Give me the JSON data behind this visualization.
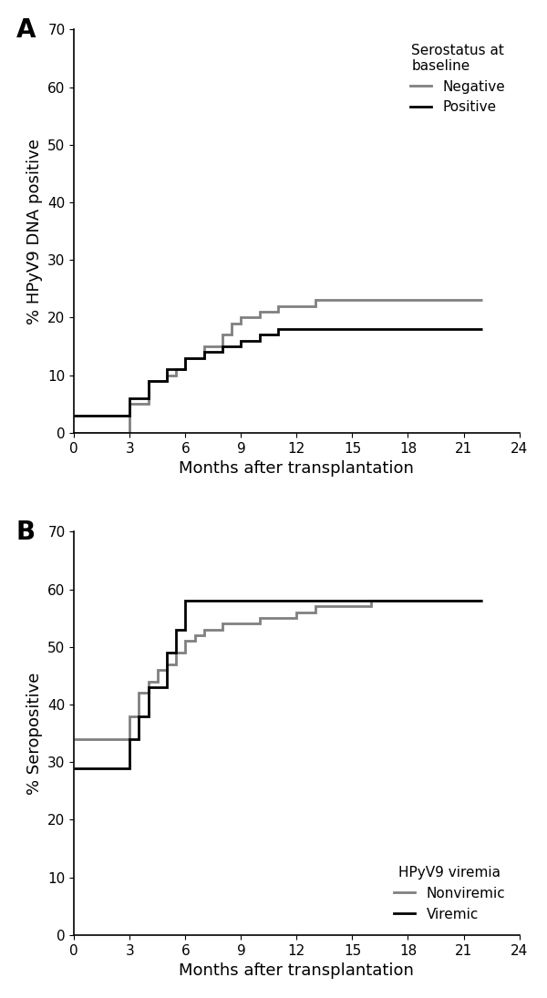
{
  "panel_A": {
    "title_label": "A",
    "ylabel": "% HPyV9 DNA positive",
    "xlabel": "Months after transplantation",
    "xlim": [
      0,
      24
    ],
    "ylim": [
      0,
      70
    ],
    "yticks": [
      0,
      10,
      20,
      30,
      40,
      50,
      60,
      70
    ],
    "xticks": [
      0,
      3,
      6,
      9,
      12,
      15,
      18,
      21,
      24
    ],
    "legend_title": "Serostatus at\nbaseline",
    "legend_labels": [
      "Negative",
      "Positive"
    ],
    "legend_pos": "upper right",
    "gray_steps": [
      [
        0,
        0
      ],
      [
        3,
        0
      ],
      [
        3,
        5
      ],
      [
        4,
        5
      ],
      [
        4,
        9
      ],
      [
        5,
        9
      ],
      [
        5,
        10
      ],
      [
        5.5,
        10
      ],
      [
        5.5,
        11
      ],
      [
        6,
        11
      ],
      [
        6,
        13
      ],
      [
        7,
        13
      ],
      [
        7,
        15
      ],
      [
        8,
        15
      ],
      [
        8,
        17
      ],
      [
        8.5,
        17
      ],
      [
        8.5,
        19
      ],
      [
        9,
        19
      ],
      [
        9,
        20
      ],
      [
        10,
        20
      ],
      [
        10,
        21
      ],
      [
        11,
        21
      ],
      [
        11,
        22
      ],
      [
        13,
        22
      ],
      [
        13,
        23
      ],
      [
        22,
        23
      ]
    ],
    "black_steps": [
      [
        0,
        3
      ],
      [
        3,
        3
      ],
      [
        3,
        6
      ],
      [
        4,
        6
      ],
      [
        4,
        9
      ],
      [
        5,
        9
      ],
      [
        5,
        11
      ],
      [
        6,
        11
      ],
      [
        6,
        13
      ],
      [
        7,
        13
      ],
      [
        7,
        14
      ],
      [
        8,
        14
      ],
      [
        8,
        15
      ],
      [
        9,
        15
      ],
      [
        9,
        16
      ],
      [
        10,
        16
      ],
      [
        10,
        17
      ],
      [
        11,
        17
      ],
      [
        11,
        18
      ],
      [
        17,
        18
      ],
      [
        17,
        18
      ],
      [
        22,
        18
      ]
    ]
  },
  "panel_B": {
    "title_label": "B",
    "ylabel": "% Seropositive",
    "xlabel": "Months after transplantation",
    "xlim": [
      0,
      24
    ],
    "ylim": [
      0,
      70
    ],
    "yticks": [
      0,
      10,
      20,
      30,
      40,
      50,
      60,
      70
    ],
    "xticks": [
      0,
      3,
      6,
      9,
      12,
      15,
      18,
      21,
      24
    ],
    "legend_title": "HPyV9 viremia",
    "legend_labels": [
      "Nonviremic",
      "Viremic"
    ],
    "legend_pos": "lower right",
    "gray_steps": [
      [
        0,
        34
      ],
      [
        3,
        34
      ],
      [
        3,
        38
      ],
      [
        3.5,
        38
      ],
      [
        3.5,
        42
      ],
      [
        4,
        42
      ],
      [
        4,
        44
      ],
      [
        4.5,
        44
      ],
      [
        4.5,
        46
      ],
      [
        5,
        46
      ],
      [
        5,
        47
      ],
      [
        5.5,
        47
      ],
      [
        5.5,
        49
      ],
      [
        6,
        49
      ],
      [
        6,
        51
      ],
      [
        6.5,
        51
      ],
      [
        6.5,
        52
      ],
      [
        7,
        52
      ],
      [
        7,
        53
      ],
      [
        8,
        53
      ],
      [
        8,
        54
      ],
      [
        9,
        54
      ],
      [
        9,
        54
      ],
      [
        10,
        54
      ],
      [
        10,
        55
      ],
      [
        11,
        55
      ],
      [
        11,
        55
      ],
      [
        12,
        55
      ],
      [
        12,
        56
      ],
      [
        13,
        56
      ],
      [
        13,
        57
      ],
      [
        15,
        57
      ],
      [
        15,
        57
      ],
      [
        16,
        57
      ],
      [
        16,
        58
      ],
      [
        22,
        58
      ]
    ],
    "black_steps": [
      [
        0,
        29
      ],
      [
        3,
        29
      ],
      [
        3,
        34
      ],
      [
        3.5,
        34
      ],
      [
        3.5,
        38
      ],
      [
        4,
        38
      ],
      [
        4,
        43
      ],
      [
        5,
        43
      ],
      [
        5,
        49
      ],
      [
        5.5,
        49
      ],
      [
        5.5,
        53
      ],
      [
        6,
        53
      ],
      [
        6,
        58
      ],
      [
        22,
        58
      ]
    ]
  },
  "line_width": 2.0,
  "gray_color": "#808080",
  "black_color": "#000000",
  "background_color": "#ffffff",
  "axis_label_fontsize": 13,
  "tick_fontsize": 11,
  "legend_fontsize": 11,
  "legend_title_fontsize": 11,
  "panel_label_fontsize": 20
}
